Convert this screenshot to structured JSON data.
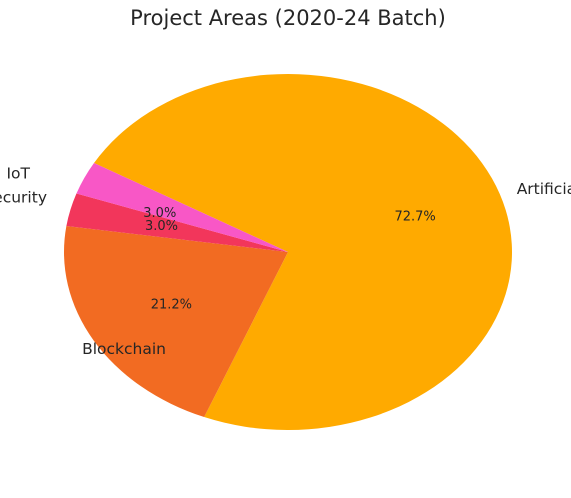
{
  "chart_data": {
    "type": "pie",
    "title": "Project Areas (2020-24 Batch)",
    "categories": [
      "Artificial Intelligence",
      "Blockchain",
      "Cybersecurity",
      "IoT"
    ],
    "values": [
      72.7,
      21.2,
      3.0,
      3.0
    ],
    "value_labels": [
      "72.7%",
      "21.2%",
      "3.0%",
      "3.0%"
    ],
    "colors": [
      "#FFAA00",
      "#F26B22",
      "#F2365B",
      "#F857C6"
    ],
    "start_angle_deg": 150,
    "direction": "clockwise",
    "legend": "none"
  }
}
